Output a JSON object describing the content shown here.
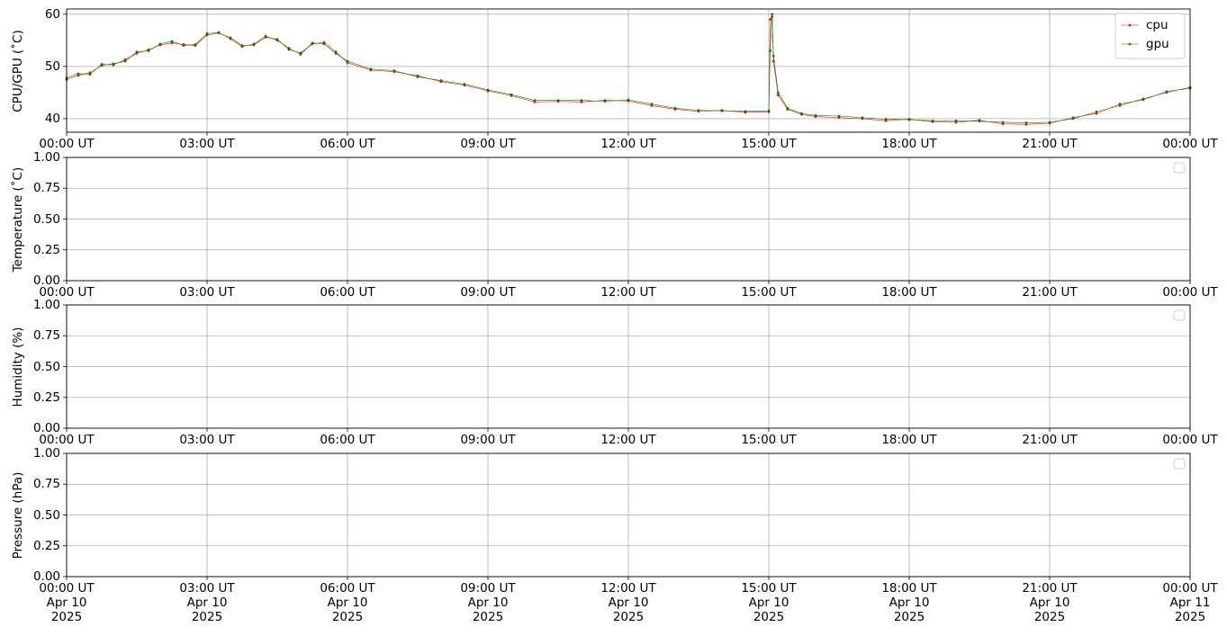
{
  "chart_data": [
    {
      "type": "line",
      "ylabel": "CPU/GPU (˚C)",
      "legend": "upper right",
      "grid": true,
      "xlim": [
        0,
        24
      ],
      "xticks": [
        {
          "value": 0,
          "label": "00:00 UT"
        },
        {
          "value": 3,
          "label": "03:00 UT"
        },
        {
          "value": 6,
          "label": "06:00 UT"
        },
        {
          "value": 9,
          "label": "09:00 UT"
        },
        {
          "value": 12,
          "label": "12:00 UT"
        },
        {
          "value": 15,
          "label": "15:00 UT"
        },
        {
          "value": 18,
          "label": "18:00 UT"
        },
        {
          "value": 21,
          "label": "21:00 UT"
        },
        {
          "value": 24,
          "label": "00:00 UT"
        }
      ],
      "ylim": [
        37.4,
        61.0
      ],
      "yticks": [
        40,
        50,
        60
      ],
      "x": [
        0,
        0.25,
        0.5,
        0.75,
        1,
        1.25,
        1.5,
        1.75,
        2,
        2.25,
        2.5,
        2.75,
        3,
        3.25,
        3.5,
        3.75,
        4,
        4.25,
        4.5,
        4.75,
        5,
        5.25,
        5.5,
        5.75,
        6,
        6.5,
        7,
        7.5,
        8,
        8.5,
        9,
        9.5,
        10,
        10.5,
        11,
        11.5,
        12,
        12.5,
        13,
        13.5,
        14,
        14.5,
        15,
        15.03,
        15.07,
        15.1,
        15.2,
        15.4,
        15.7,
        16,
        16.5,
        17,
        17.5,
        18,
        18.5,
        19,
        19.5,
        20,
        20.5,
        21,
        21.5,
        22,
        22.5,
        23,
        23.5,
        24
      ],
      "series": [
        {
          "name": "cpu",
          "color": "#ff0000",
          "values": [
            47.8,
            48.6,
            48.5,
            50.4,
            50.3,
            51.3,
            52.5,
            53.2,
            54.1,
            54.5,
            54.2,
            54.0,
            56.0,
            56.4,
            55.5,
            54.0,
            54.1,
            55.6,
            55.2,
            53.2,
            52.6,
            54.3,
            54.6,
            52.8,
            50.7,
            49.3,
            49.0,
            48.2,
            47.1,
            46.4,
            45.3,
            44.4,
            43.2,
            43.3,
            43.2,
            43.5,
            43.4,
            42.5,
            41.8,
            41.4,
            41.6,
            41.2,
            41.3,
            59,
            59.5,
            51,
            44.5,
            41.8,
            40.8,
            40.4,
            40.2,
            40.0,
            39.6,
            39.9,
            39.4,
            39.3,
            39.7,
            39.0,
            38.9,
            39.1,
            40.2,
            41.0,
            42.8,
            43.6,
            45.2,
            45.8
          ]
        },
        {
          "name": "gpu",
          "color": "#008000",
          "values": [
            47.5,
            48.3,
            48.8,
            50.2,
            50.5,
            51,
            52.8,
            53,
            54.3,
            54.8,
            54,
            54.2,
            56.3,
            56.5,
            55.3,
            53.8,
            54.3,
            55.8,
            55,
            53.5,
            52.3,
            54.5,
            54.3,
            52.5,
            51,
            49.5,
            49.2,
            48,
            47.3,
            46.6,
            45.5,
            44.6,
            43.5,
            43.5,
            43.5,
            43.3,
            43.6,
            42.8,
            42,
            41.6,
            41.5,
            41.4,
            41.5,
            53,
            60,
            52,
            45,
            42,
            41,
            40.6,
            40.5,
            40.2,
            39.9,
            39.8,
            39.6,
            39.6,
            39.5,
            39.3,
            39.2,
            39.3,
            40,
            41.3,
            42.5,
            43.8,
            45,
            46
          ]
        }
      ]
    },
    {
      "type": "line",
      "ylabel": "Temperature (˚C)",
      "legend": "upper right",
      "grid": true,
      "xlim": [
        0,
        24
      ],
      "xticks": [
        {
          "value": 0,
          "label": "00:00 UT"
        },
        {
          "value": 3,
          "label": "03:00 UT"
        },
        {
          "value": 6,
          "label": "06:00 UT"
        },
        {
          "value": 9,
          "label": "09:00 UT"
        },
        {
          "value": 12,
          "label": "12:00 UT"
        },
        {
          "value": 15,
          "label": "15:00 UT"
        },
        {
          "value": 18,
          "label": "18:00 UT"
        },
        {
          "value": 21,
          "label": "21:00 UT"
        },
        {
          "value": 24,
          "label": "00:00 UT"
        }
      ],
      "ylim": [
        0,
        1
      ],
      "yticks": [
        {
          "value": 0,
          "label": "0.00"
        },
        {
          "value": 0.25,
          "label": "0.25"
        },
        {
          "value": 0.5,
          "label": "0.50"
        },
        {
          "value": 0.75,
          "label": "0.75"
        },
        {
          "value": 1,
          "label": "1.00"
        }
      ]
    },
    {
      "type": "line",
      "ylabel": "Humidity (%)",
      "legend": "upper right",
      "grid": true,
      "xlim": [
        0,
        24
      ],
      "xticks": [
        {
          "value": 0,
          "label": "00:00 UT"
        },
        {
          "value": 3,
          "label": "03:00 UT"
        },
        {
          "value": 6,
          "label": "06:00 UT"
        },
        {
          "value": 9,
          "label": "09:00 UT"
        },
        {
          "value": 12,
          "label": "12:00 UT"
        },
        {
          "value": 15,
          "label": "15:00 UT"
        },
        {
          "value": 18,
          "label": "18:00 UT"
        },
        {
          "value": 21,
          "label": "21:00 UT"
        },
        {
          "value": 24,
          "label": "00:00 UT"
        }
      ],
      "ylim": [
        0,
        1
      ],
      "yticks": [
        {
          "value": 0,
          "label": "0.00"
        },
        {
          "value": 0.25,
          "label": "0.25"
        },
        {
          "value": 0.5,
          "label": "0.50"
        },
        {
          "value": 0.75,
          "label": "0.75"
        },
        {
          "value": 1,
          "label": "1.00"
        }
      ]
    },
    {
      "type": "line",
      "ylabel": "Pressure (hPa)",
      "legend": "upper right",
      "grid": true,
      "xlim": [
        0,
        24
      ],
      "xticks": [
        {
          "value": 0,
          "label": "00:00 UT\nApr 10\n2025"
        },
        {
          "value": 3,
          "label": "03:00 UT\nApr 10\n2025"
        },
        {
          "value": 6,
          "label": "06:00 UT\nApr 10\n2025"
        },
        {
          "value": 9,
          "label": "09:00 UT\nApr 10\n2025"
        },
        {
          "value": 12,
          "label": "12:00 UT\nApr 10\n2025"
        },
        {
          "value": 15,
          "label": "15:00 UT\nApr 10\n2025"
        },
        {
          "value": 18,
          "label": "18:00 UT\nApr 10\n2025"
        },
        {
          "value": 21,
          "label": "21:00 UT\nApr 10\n2025"
        },
        {
          "value": 24,
          "label": "00:00 UT\nApr 11\n2025"
        }
      ],
      "ylim": [
        0,
        1
      ],
      "yticks": [
        {
          "value": 0,
          "label": "0.00"
        },
        {
          "value": 0.25,
          "label": "0.25"
        },
        {
          "value": 0.5,
          "label": "0.50"
        },
        {
          "value": 0.75,
          "label": "0.75"
        },
        {
          "value": 1,
          "label": "1.00"
        }
      ]
    }
  ]
}
